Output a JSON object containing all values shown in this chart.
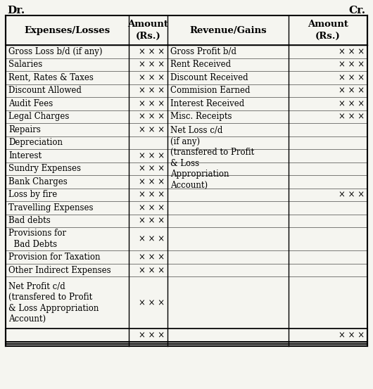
{
  "title_left": "Dr.",
  "title_right": "Cr.",
  "headers": [
    "Expenses/Losses",
    "Amount\n(Rs.)",
    "Revenue/Gains",
    "Amount\n(Rs.)"
  ],
  "left_items": [
    {
      "text": "Gross Loss b/d (if any)",
      "amount": "× × ×"
    },
    {
      "text": "Salaries",
      "amount": "× × ×"
    },
    {
      "text": "Rent, Rates & Taxes",
      "amount": "× × ×"
    },
    {
      "text": "Discount Allowed",
      "amount": "× × ×"
    },
    {
      "text": "Audit Fees",
      "amount": "× × ×"
    },
    {
      "text": "Legal Charges",
      "amount": "× × ×"
    },
    {
      "text": "Repairs",
      "amount": "× × ×"
    },
    {
      "text": "Depreciation",
      "amount": ""
    },
    {
      "text": "Interest",
      "amount": "× × ×"
    },
    {
      "text": "Sundry Expenses",
      "amount": "× × ×"
    },
    {
      "text": "Bank Charges",
      "amount": "× × ×"
    },
    {
      "text": "Loss by fire",
      "amount": "× × ×"
    },
    {
      "text": "Travelling Expenses",
      "amount": "× × ×"
    },
    {
      "text": "Bad debts",
      "amount": "× × ×"
    },
    {
      "text": "Provisions for\n  Bad Debts",
      "amount": "× × ×",
      "lines": 2
    },
    {
      "text": "Provision for Taxation",
      "amount": "× × ×"
    },
    {
      "text": "Other Indirect Expenses",
      "amount": "× × ×"
    },
    {
      "text": "Net Profit c/d\n(transfered to Profit\n& Loss Appropriation\nAccount)",
      "amount": "× × ×",
      "lines": 4
    }
  ],
  "right_items": [
    {
      "text": "Gross Profit b/d",
      "amount": "× × ×"
    },
    {
      "text": "Rent Received",
      "amount": "× × ×"
    },
    {
      "text": "Discount Received",
      "amount": "× × ×"
    },
    {
      "text": "Commision Earned",
      "amount": "× × ×"
    },
    {
      "text": "Interest Received",
      "amount": "× × ×"
    },
    {
      "text": "Misc. Receipts",
      "amount": "× × ×"
    },
    {
      "text": "Net Loss c/d\n(if any)\n(transfered to Profit\n& Loss\nAppropriation\nAccount)",
      "amount": "× × ×",
      "lines": 6,
      "amount_at_bottom": true
    }
  ],
  "total_xxx": "× × ×",
  "bg_color": "#f5f5f0",
  "border_color": "#000000",
  "text_color": "#000000",
  "font_size": 8.5,
  "header_font_size": 9.5
}
